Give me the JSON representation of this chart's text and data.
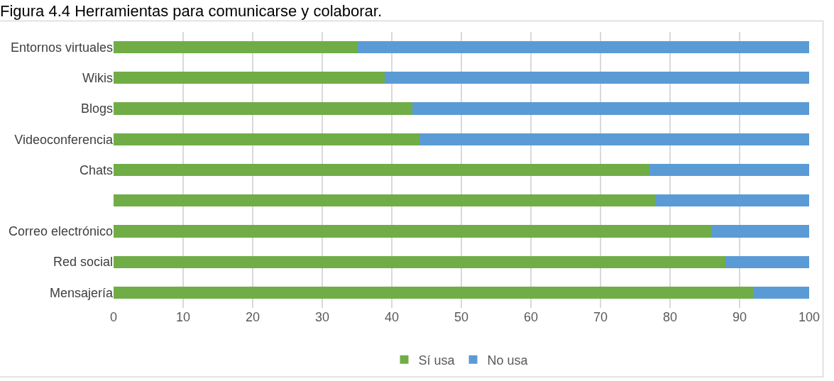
{
  "chart_data": {
    "type": "bar",
    "orientation": "horizontal",
    "stacked": true,
    "title": "Figura 4.4 Herramientas para comunicarse y colaborar.",
    "categories": [
      "Entornos virtuales",
      "Wikis",
      "Blogs",
      "Videoconferencia",
      "Chats",
      null,
      "Correo electrónico",
      "Red social",
      "Mensajería"
    ],
    "series": [
      {
        "name": "Sí usa",
        "color": "#70ad47",
        "values": [
          35,
          39,
          43,
          44,
          77,
          78,
          86,
          88,
          92
        ]
      },
      {
        "name": "No usa",
        "color": "#5b9bd5",
        "values": [
          65,
          61,
          57,
          56,
          23,
          22,
          14,
          12,
          8
        ]
      }
    ],
    "xlim": [
      0,
      100
    ],
    "xticks": [
      0,
      10,
      20,
      30,
      40,
      50,
      60,
      70,
      80,
      90,
      100
    ],
    "grid": "x",
    "legend": "bottom"
  }
}
